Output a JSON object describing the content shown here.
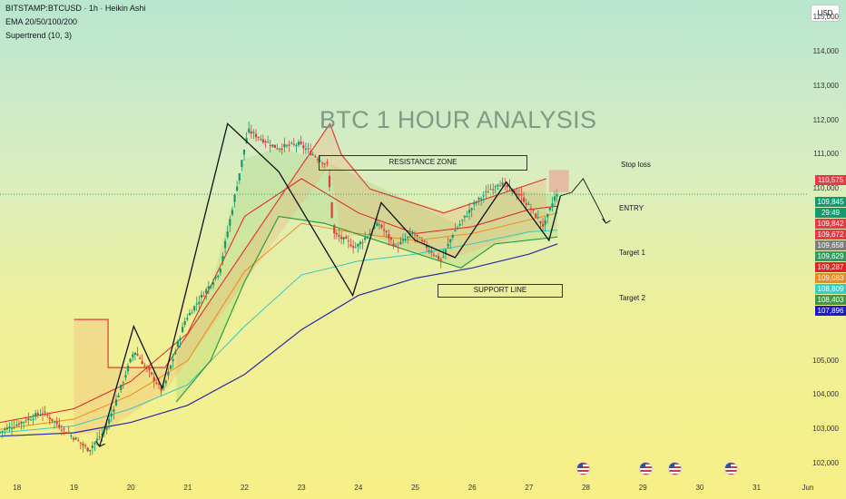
{
  "header": {
    "symbol_line": "BITSTAMP:BTCUSD · 1h · Heikin Ashi",
    "ema_line": "EMA 20/50/100/200",
    "supertrend_line": "Supertrend (10, 3)"
  },
  "currency_button": "USD",
  "title": "BTC 1 HOUR ANALYSIS",
  "annotations": {
    "resistance": "RESISTANCE ZONE",
    "support": "SUPPORT LINE",
    "stop_loss": "Stop loss",
    "entry": "ENTRY",
    "target1": "Target 1",
    "target2": "Target 2"
  },
  "badges": [
    {
      "label": "110,575",
      "color": "#e63946"
    },
    {
      "label": "109,845",
      "color": "#149a6e"
    },
    {
      "label": "29:49",
      "color": "#149a6e"
    },
    {
      "label": "109,842",
      "color": "#e63946"
    },
    {
      "label": "109,672",
      "color": "#e63946"
    },
    {
      "label": "109,658",
      "color": "#7d7d7d"
    },
    {
      "label": "109,629",
      "color": "#2e9c5e"
    },
    {
      "label": "109,287",
      "color": "#e32222"
    },
    {
      "label": "109,083",
      "color": "#f08a1c"
    },
    {
      "label": "108,809",
      "color": "#34d0c8"
    },
    {
      "label": "108,403",
      "color": "#3f9a3f"
    },
    {
      "label": "107,896",
      "color": "#1b1bc8"
    }
  ],
  "chart_data": {
    "type": "candlestick",
    "title": "BTC 1 HOUR ANALYSIS",
    "y_ticks": [
      102000,
      103000,
      104000,
      105000,
      110000,
      111000,
      112000,
      113000,
      114000,
      115000
    ],
    "y_tick_labels": [
      "102,000",
      "103,000",
      "104,000",
      "105,000",
      "110,000",
      "111,000",
      "112,000",
      "113,000",
      "114,000",
      "115,000"
    ],
    "ylim": [
      101500,
      115500
    ],
    "x_tick_labels": [
      "18",
      "19",
      "20",
      "21",
      "22",
      "23",
      "24",
      "25",
      "26",
      "27",
      "28",
      "29",
      "30",
      "31",
      "Jun"
    ],
    "x_domain": [
      17.7,
      31.9
    ],
    "x_ticks": [
      18,
      19,
      20,
      21,
      22,
      23,
      24,
      25,
      26,
      27,
      28,
      29,
      30,
      31,
      31.9
    ],
    "price_path": [
      [
        17.7,
        102900
      ],
      [
        18.5,
        103500
      ],
      [
        19.3,
        102400
      ],
      [
        19.6,
        103000
      ],
      [
        20.1,
        105300
      ],
      [
        20.6,
        104100
      ],
      [
        21.0,
        106200
      ],
      [
        21.6,
        107600
      ],
      [
        22.1,
        111700
      ],
      [
        22.6,
        111200
      ],
      [
        23.0,
        111300
      ],
      [
        23.5,
        110700
      ],
      [
        23.6,
        108700
      ],
      [
        24.0,
        108300
      ],
      [
        24.4,
        109000
      ],
      [
        24.7,
        108300
      ],
      [
        25.0,
        108700
      ],
      [
        25.5,
        107900
      ],
      [
        25.7,
        108700
      ],
      [
        26.1,
        109600
      ],
      [
        26.5,
        110200
      ],
      [
        26.9,
        109800
      ],
      [
        27.3,
        108900
      ],
      [
        27.5,
        109800
      ]
    ],
    "pattern_path": [
      [
        19.45,
        102500
      ],
      [
        20.05,
        106000
      ],
      [
        20.55,
        104200
      ],
      [
        21.7,
        111900
      ],
      [
        22.6,
        110500
      ],
      [
        23.9,
        106900
      ],
      [
        24.4,
        109600
      ],
      [
        25.0,
        108500
      ],
      [
        25.7,
        108000
      ],
      [
        26.6,
        110200
      ],
      [
        27.35,
        108500
      ],
      [
        27.55,
        109800
      ]
    ],
    "projection_path": [
      [
        27.55,
        109800
      ],
      [
        27.75,
        109900
      ],
      [
        27.95,
        110300
      ],
      [
        28.2,
        109500
      ],
      [
        28.35,
        109000
      ]
    ],
    "ema_20": [
      [
        17.7,
        103200
      ],
      [
        19.0,
        103600
      ],
      [
        20.0,
        104400
      ],
      [
        21.0,
        105800
      ],
      [
        22.0,
        109200
      ],
      [
        23.0,
        110300
      ],
      [
        24.0,
        109300
      ],
      [
        25.0,
        108700
      ],
      [
        26.0,
        108900
      ],
      [
        27.0,
        109400
      ],
      [
        27.5,
        109500
      ]
    ],
    "ema_50": [
      [
        17.7,
        103000
      ],
      [
        19.0,
        103300
      ],
      [
        20.0,
        104000
      ],
      [
        21.0,
        105000
      ],
      [
        22.0,
        107600
      ],
      [
        23.0,
        109000
      ],
      [
        24.0,
        108700
      ],
      [
        25.0,
        108500
      ],
      [
        26.0,
        108700
      ],
      [
        27.0,
        109100
      ],
      [
        27.5,
        109300
      ]
    ],
    "ema_100": [
      [
        17.7,
        102900
      ],
      [
        19.0,
        103100
      ],
      [
        20.0,
        103600
      ],
      [
        21.0,
        104300
      ],
      [
        22.0,
        106000
      ],
      [
        23.0,
        107500
      ],
      [
        24.0,
        107900
      ],
      [
        25.0,
        108100
      ],
      [
        26.0,
        108400
      ],
      [
        27.0,
        108750
      ],
      [
        27.5,
        108800
      ]
    ],
    "ema_200": [
      [
        17.7,
        102800
      ],
      [
        19.0,
        102900
      ],
      [
        20.0,
        103200
      ],
      [
        21.0,
        103700
      ],
      [
        22.0,
        104600
      ],
      [
        23.0,
        105900
      ],
      [
        24.0,
        106900
      ],
      [
        25.0,
        107400
      ],
      [
        26.0,
        107700
      ],
      [
        27.0,
        108100
      ],
      [
        27.5,
        108400
      ]
    ],
    "supertrend_down": [
      [
        19.0,
        106200
      ],
      [
        19.6,
        106200
      ],
      [
        19.6,
        104800
      ],
      [
        20.6,
        104800
      ],
      [
        23.5,
        111900
      ],
      [
        23.7,
        111000
      ],
      [
        24.2,
        110000
      ],
      [
        25.5,
        109300
      ],
      [
        27.3,
        110300
      ]
    ],
    "supertrend_up": [
      [
        20.8,
        103800
      ],
      [
        21.4,
        105000
      ],
      [
        22.0,
        107300
      ],
      [
        22.6,
        109200
      ],
      [
        23.4,
        109000
      ],
      [
        25.8,
        107700
      ],
      [
        26.4,
        108400
      ],
      [
        27.5,
        108600
      ]
    ],
    "current_price": 109845,
    "zones": {
      "resistance": {
        "x": [
          23.5,
          27.9
        ],
        "y": [
          110800,
          111250
        ]
      },
      "support": {
        "x": [
          25.8,
          27.7
        ],
        "y": [
          107700,
          108000
        ]
      }
    },
    "event_flag_days": [
      27.95,
      29.05,
      29.55,
      30.55
    ]
  }
}
